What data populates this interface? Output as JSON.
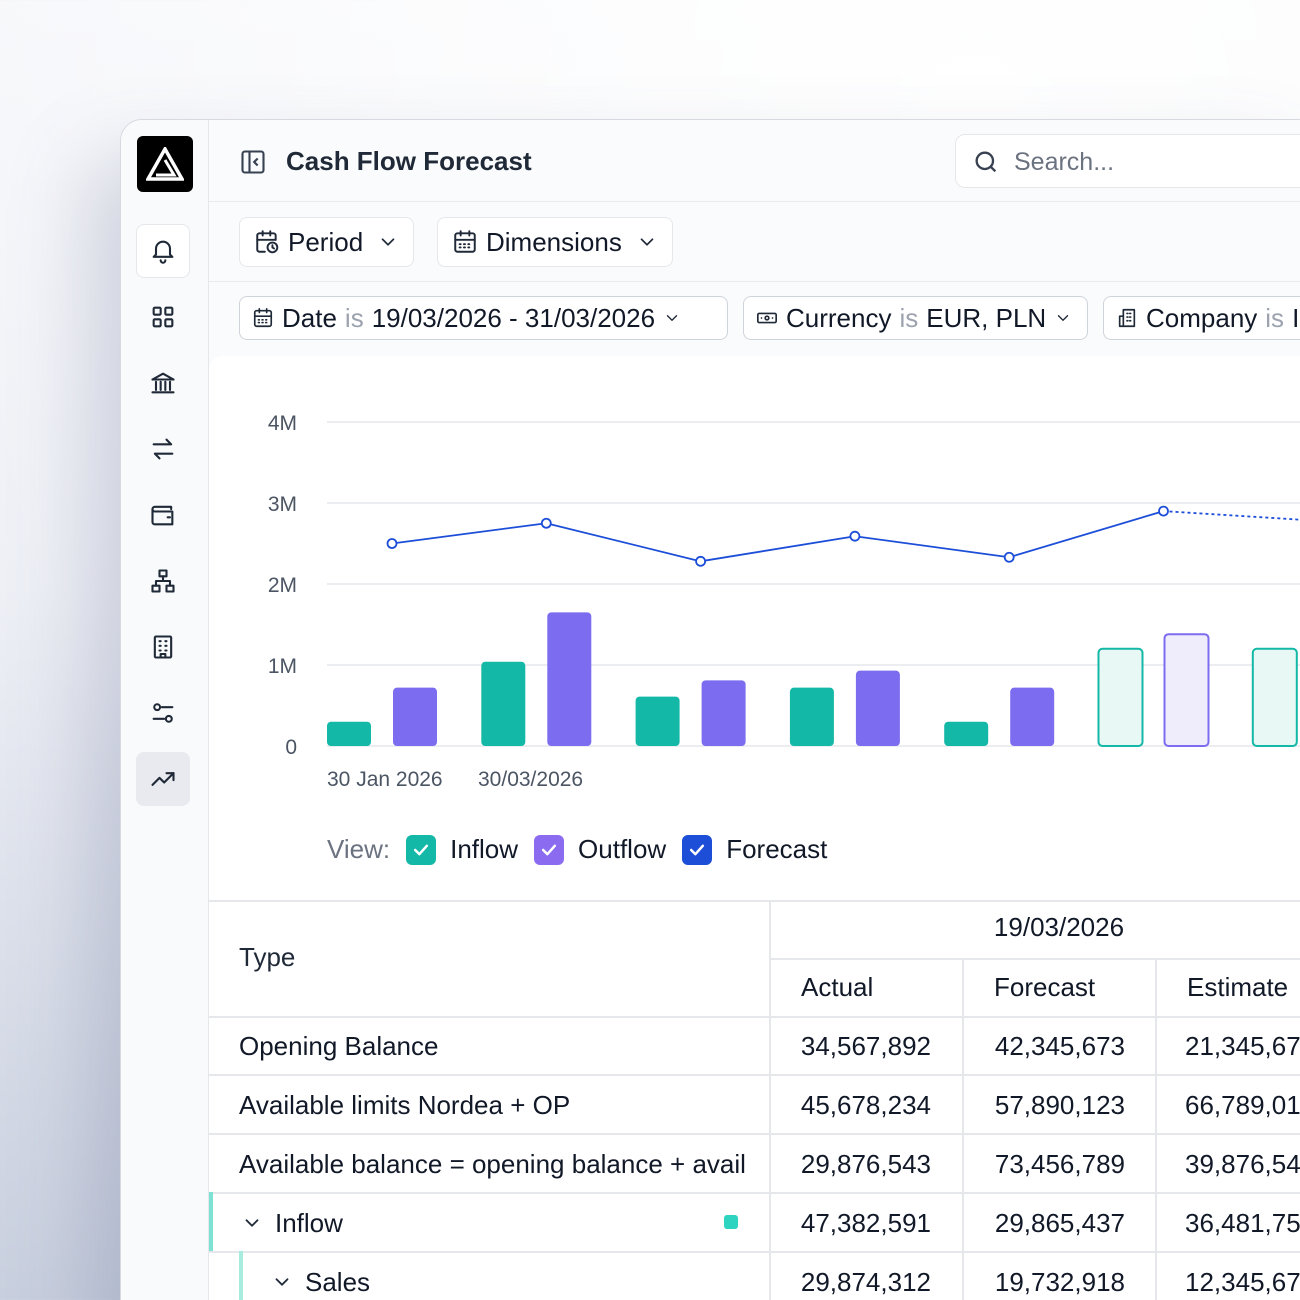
{
  "app": {
    "title": "Cash Flow Forecast",
    "search_placeholder": "Search..."
  },
  "sidebar": {
    "items": [
      {
        "icon": "bell-icon"
      },
      {
        "icon": "dashboard-icon"
      },
      {
        "icon": "bank-icon"
      },
      {
        "icon": "transfer-icon"
      },
      {
        "icon": "wallet-icon"
      },
      {
        "icon": "hierarchy-icon"
      },
      {
        "icon": "building-icon"
      },
      {
        "icon": "sliders-icon"
      },
      {
        "icon": "trend-icon",
        "active": true
      }
    ]
  },
  "toolbar": {
    "period_label": "Period",
    "dimensions_label": "Dimensions"
  },
  "filters": [
    {
      "field": "Date",
      "op": "is",
      "value": "19/03/2026 - 31/03/2026"
    },
    {
      "field": "Currency",
      "op": "is",
      "value": "EUR, PLN"
    },
    {
      "field": "Company",
      "op": "is",
      "value": "I"
    }
  ],
  "chart_data": {
    "type": "bar",
    "y_ticks": [
      "4M",
      "3M",
      "2M",
      "1M",
      "0"
    ],
    "ylim": [
      0,
      4000000
    ],
    "x_tick_labels": [
      "30 Jan 2026",
      "30/03/2026"
    ],
    "groups": [
      {
        "inflow": 300000,
        "outflow": 720000,
        "forecast": 2500000
      },
      {
        "inflow": 1040000,
        "outflow": 1650000,
        "forecast": 2750000
      },
      {
        "inflow": 610000,
        "outflow": 810000,
        "forecast": 2280000
      },
      {
        "inflow": 720000,
        "outflow": 930000,
        "forecast": 2590000
      },
      {
        "inflow": 300000,
        "outflow": 720000,
        "forecast": 2330000
      },
      {
        "inflow": 1200000,
        "outflow": 1380000,
        "forecast": 2900000,
        "projected": true
      },
      {
        "inflow": 1200000,
        "outflow": null,
        "forecast": 2780000,
        "projected": true
      }
    ],
    "colors": {
      "inflow": "#14b8a6",
      "outflow": "#7c6cf0",
      "forecast": "#1d4ed8"
    }
  },
  "legend": {
    "view_label": "View:",
    "items": [
      {
        "label": "Inflow",
        "color": "#14b8a6",
        "checked": true
      },
      {
        "label": "Outflow",
        "color": "#8b6cf0",
        "checked": true
      },
      {
        "label": "Forecast",
        "color": "#1d4ed8",
        "checked": true
      }
    ]
  },
  "table": {
    "type_header": "Type",
    "date_header": "19/03/2026",
    "columns": [
      "Actual",
      "Forecast",
      "Estimate"
    ],
    "rows": [
      {
        "label": "Opening Balance",
        "values": [
          "34,567,892",
          "42,345,673",
          "21,345,67"
        ]
      },
      {
        "label": "Available limits Nordea + OP",
        "values": [
          "45,678,234",
          "57,890,123",
          "66,789,01"
        ]
      },
      {
        "label": "Available balance = opening balance + avail",
        "values": [
          "29,876,543",
          "73,456,789",
          "39,876,54"
        ]
      },
      {
        "label": "Inflow",
        "values": [
          "47,382,591",
          "29,865,437",
          "36,481,75"
        ]
      },
      {
        "label": "Sales",
        "values": [
          "29,874,312",
          "19,732,918",
          "12,345,67"
        ]
      }
    ]
  }
}
